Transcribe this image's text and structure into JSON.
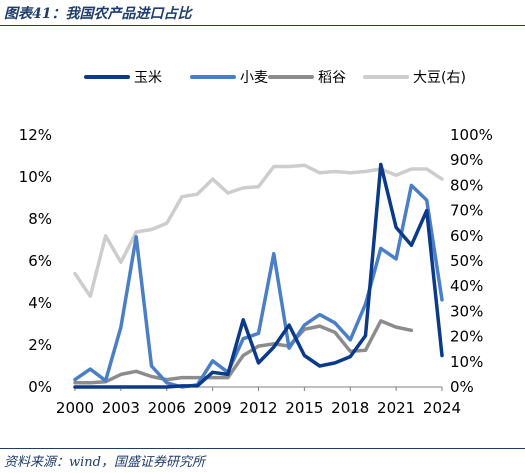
{
  "title": "图表41：我国农产品进口占比",
  "source": "资料来源：wind，国盛证券研究所",
  "colors": {
    "corn": "#0b3a8a",
    "wheat": "#4a7fc8",
    "rice": "#8c8c8c",
    "soy": "#cdcdcd"
  },
  "chart_data": {
    "type": "line",
    "legend": [
      "玉米",
      "小麦",
      "稻谷",
      "大豆(右)"
    ],
    "legend_position": "top",
    "y_left": {
      "min": 0,
      "max": 12,
      "ticks": [
        "0%",
        "2%",
        "4%",
        "6%",
        "8%",
        "10%",
        "12%"
      ]
    },
    "y_right": {
      "min": 0,
      "max": 100,
      "ticks": [
        "0%",
        "10%",
        "20%",
        "30%",
        "40%",
        "50%",
        "60%",
        "70%",
        "80%",
        "90%",
        "100%"
      ]
    },
    "x_ticks": [
      "2000",
      "2003",
      "2006",
      "2009",
      "2012",
      "2015",
      "2018",
      "2021",
      "2024"
    ],
    "x_min": 2000,
    "x_max": 2024,
    "series": [
      {
        "name": "玉米",
        "color_key": "corn",
        "axis": "left",
        "points": [
          [
            2000,
            0.0
          ],
          [
            2001,
            0.0
          ],
          [
            2002,
            0.0
          ],
          [
            2003,
            0.0
          ],
          [
            2004,
            0.0
          ],
          [
            2005,
            0.0
          ],
          [
            2006,
            0.0
          ],
          [
            2007,
            0.05
          ],
          [
            2008,
            0.05
          ],
          [
            2009,
            0.7
          ],
          [
            2010,
            0.6
          ],
          [
            2011,
            3.2
          ],
          [
            2012,
            1.15
          ],
          [
            2013,
            1.9
          ],
          [
            2014,
            2.95
          ],
          [
            2015,
            1.5
          ],
          [
            2016,
            1.0
          ],
          [
            2017,
            1.15
          ],
          [
            2018,
            1.45
          ],
          [
            2019,
            2.45
          ],
          [
            2020,
            10.6
          ],
          [
            2021,
            7.6
          ],
          [
            2022,
            6.75
          ],
          [
            2023,
            8.4
          ],
          [
            2024,
            1.5
          ]
        ]
      },
      {
        "name": "小麦",
        "color_key": "wheat",
        "axis": "left",
        "points": [
          [
            2000,
            0.35
          ],
          [
            2001,
            0.85
          ],
          [
            2002,
            0.3
          ],
          [
            2003,
            2.85
          ],
          [
            2004,
            7.15
          ],
          [
            2005,
            1.0
          ],
          [
            2006,
            0.2
          ],
          [
            2007,
            0.0
          ],
          [
            2008,
            0.1
          ],
          [
            2009,
            1.25
          ],
          [
            2010,
            0.7
          ],
          [
            2011,
            2.3
          ],
          [
            2012,
            2.55
          ],
          [
            2013,
            6.35
          ],
          [
            2014,
            1.85
          ],
          [
            2015,
            2.95
          ],
          [
            2016,
            3.45
          ],
          [
            2017,
            3.05
          ],
          [
            2018,
            2.25
          ],
          [
            2019,
            3.95
          ],
          [
            2020,
            6.6
          ],
          [
            2021,
            6.1
          ],
          [
            2022,
            9.6
          ],
          [
            2023,
            8.9
          ],
          [
            2024,
            4.15
          ]
        ]
      },
      {
        "name": "稻谷",
        "color_key": "rice",
        "axis": "left",
        "points": [
          [
            2000,
            0.2
          ],
          [
            2001,
            0.2
          ],
          [
            2002,
            0.25
          ],
          [
            2003,
            0.6
          ],
          [
            2004,
            0.75
          ],
          [
            2005,
            0.5
          ],
          [
            2006,
            0.35
          ],
          [
            2007,
            0.45
          ],
          [
            2008,
            0.45
          ],
          [
            2009,
            0.45
          ],
          [
            2010,
            0.45
          ],
          [
            2011,
            1.5
          ],
          [
            2012,
            1.95
          ],
          [
            2013,
            2.05
          ],
          [
            2014,
            1.95
          ],
          [
            2015,
            2.75
          ],
          [
            2016,
            2.9
          ],
          [
            2017,
            2.6
          ],
          [
            2018,
            1.7
          ],
          [
            2019,
            1.75
          ],
          [
            2020,
            3.15
          ],
          [
            2021,
            2.85
          ],
          [
            2022,
            2.7
          ]
        ]
      },
      {
        "name": "大豆(右)",
        "color_key": "soy",
        "axis": "right",
        "points": [
          [
            2000,
            45
          ],
          [
            2001,
            36
          ],
          [
            2002,
            60
          ],
          [
            2003,
            49.5
          ],
          [
            2004,
            61.5
          ],
          [
            2005,
            62.5
          ],
          [
            2006,
            65
          ],
          [
            2007,
            75.5
          ],
          [
            2008,
            76.5
          ],
          [
            2009,
            82.5
          ],
          [
            2010,
            77
          ],
          [
            2011,
            79
          ],
          [
            2012,
            79.5
          ],
          [
            2013,
            87.5
          ],
          [
            2014,
            87.5
          ],
          [
            2015,
            88
          ],
          [
            2016,
            85
          ],
          [
            2017,
            85.5
          ],
          [
            2018,
            85
          ],
          [
            2019,
            85.5
          ],
          [
            2020,
            86.5
          ],
          [
            2021,
            84
          ],
          [
            2022,
            86.5
          ],
          [
            2023,
            86.5
          ],
          [
            2024,
            82.5
          ]
        ]
      }
    ]
  }
}
